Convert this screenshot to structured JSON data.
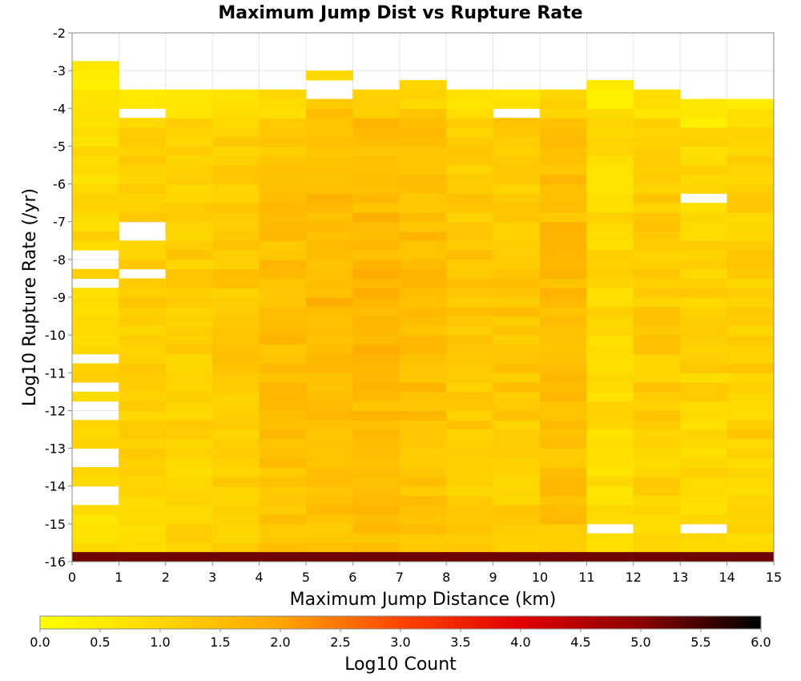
{
  "chart_data": {
    "type": "heatmap",
    "title": "Maximum Jump Dist vs Rupture Rate",
    "xlabel": "Maximum Jump Distance (km)",
    "ylabel": "Log10 Rupture Rate (/yr)",
    "xlim": [
      0,
      15
    ],
    "ylim": [
      -16,
      -2
    ],
    "x_ticks": [
      "0",
      "1",
      "2",
      "3",
      "4",
      "5",
      "6",
      "7",
      "8",
      "9",
      "10",
      "11",
      "12",
      "13",
      "14",
      "15"
    ],
    "y_ticks": [
      "-2",
      "-3",
      "-4",
      "-5",
      "-6",
      "-7",
      "-8",
      "-9",
      "-10",
      "-11",
      "-12",
      "-13",
      "-14",
      "-15",
      "-16"
    ],
    "x_bin_width": 1,
    "y_bin_width": 0.25,
    "grid": true,
    "colorbar": {
      "label": "Log10 Count",
      "range": [
        0,
        6
      ],
      "ticks": [
        "0.0",
        "0.5",
        "1.0",
        "1.5",
        "2.0",
        "2.5",
        "3.0",
        "3.5",
        "4.0",
        "4.5",
        "5.0",
        "5.5",
        "6.0"
      ],
      "colors": [
        "#ffff00",
        "#ffd700",
        "#ffa500",
        "#ff4500",
        "#e00000",
        "#8b0000",
        "#000000"
      ]
    },
    "columns": [
      {
        "x": 0.5,
        "ymin": -16,
        "ymax": -2.75,
        "empty": [
          [
            -8.25,
            -7.75
          ],
          [
            -8.75,
            -8.5
          ],
          [
            -10.75,
            -10.5
          ],
          [
            -11.5,
            -11.25
          ],
          [
            -12.25,
            -11.75
          ],
          [
            -13.5,
            -13
          ],
          [
            -14.5,
            -14
          ]
        ],
        "base": 0.75
      },
      {
        "x": 1.5,
        "ymin": -16,
        "ymax": -3.5,
        "empty": [
          [
            -4.25,
            -4
          ],
          [
            -7.5,
            -7
          ],
          [
            -8.5,
            -8.25
          ]
        ],
        "base": 0.95
      },
      {
        "x": 2.5,
        "ymin": -16,
        "ymax": -3.5,
        "empty": [],
        "base": 0.95
      },
      {
        "x": 3.5,
        "ymin": -16,
        "ymax": -3.5,
        "empty": [],
        "base": 1.05
      },
      {
        "x": 4.5,
        "ymin": -16,
        "ymax": -3.5,
        "empty": [],
        "base": 1.25
      },
      {
        "x": 5.5,
        "ymin": -16,
        "ymax": -3.0,
        "empty": [
          [
            -3.75,
            -3.25
          ]
        ],
        "base": 1.35
      },
      {
        "x": 6.5,
        "ymin": -16,
        "ymax": -3.5,
        "empty": [],
        "base": 1.4
      },
      {
        "x": 7.5,
        "ymin": -16,
        "ymax": -3.25,
        "empty": [],
        "base": 1.3
      },
      {
        "x": 8.5,
        "ymin": -16,
        "ymax": -3.5,
        "empty": [],
        "base": 1.1
      },
      {
        "x": 9.5,
        "ymin": -16,
        "ymax": -3.5,
        "empty": [
          [
            -4.25,
            -4
          ]
        ],
        "base": 1.1
      },
      {
        "x": 10.5,
        "ymin": -16,
        "ymax": -3.5,
        "empty": [],
        "base": 1.3
      },
      {
        "x": 11.5,
        "ymin": -16,
        "ymax": -3.25,
        "empty": [
          [
            -15.25,
            -15
          ]
        ],
        "base": 0.75
      },
      {
        "x": 12.5,
        "ymin": -16,
        "ymax": -3.5,
        "empty": [],
        "base": 1.0
      },
      {
        "x": 13.5,
        "ymin": -16,
        "ymax": -3.75,
        "empty": [
          [
            -6.5,
            -6.25
          ],
          [
            -15.25,
            -15
          ]
        ],
        "base": 0.85
      },
      {
        "x": 14.5,
        "ymin": -16,
        "ymax": -3.75,
        "empty": [],
        "base": 0.95
      }
    ],
    "bottom_row": {
      "ymin": -16,
      "ymax": -15.875,
      "value": 5.2
    }
  }
}
